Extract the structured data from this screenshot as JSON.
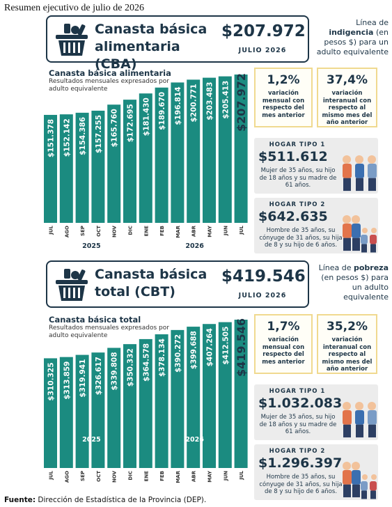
{
  "page_title": "Resumen ejecutivo de julio de 2026",
  "sections": [
    {
      "header": {
        "title": "Canasta básica alimentaria (CBA)",
        "amount": "$207.972",
        "period": "JULIO 2026",
        "note_before": "Línea de",
        "note_bold": "indigencia",
        "note_after": "(en pesos $) para un adulto equivalente"
      },
      "stats": [
        {
          "value": "1,2%",
          "label": "variación mensual con respecto del mes anterior"
        },
        {
          "value": "37,4%",
          "label": "variación interanual con respecto al mismo mes del año anterior"
        }
      ],
      "households": [
        {
          "title": "HOGAR TIPO 1",
          "amount": "$511.612",
          "description": "Mujer de 35 años, su hijo de 18 años y su madre de 61 años."
        },
        {
          "title": "HOGAR TIPO 2",
          "amount": "$642.635",
          "description": "Hombre de 35 años, su cónyuge de 31 años, su hija de 8 y su hijo de 6 años."
        }
      ]
    },
    {
      "header": {
        "title": "Canasta básica total (CBT)",
        "amount": "$419.546",
        "period": "JULIO 2026",
        "note_before": "Línea de",
        "note_bold": "pobreza",
        "note_after": "(en pesos $) para un adulto equivalente"
      },
      "stats": [
        {
          "value": "1,7%",
          "label": "variación mensual con respecto del mes anterior"
        },
        {
          "value": "35,2%",
          "label": "variación interanual con respecto al mismo mes del año anterior"
        }
      ],
      "households": [
        {
          "title": "HOGAR TIPO 1",
          "amount": "$1.032.083",
          "description": "Mujer de 35 años, su hijo de 18 años y su madre de 61 años."
        },
        {
          "title": "HOGAR TIPO 2",
          "amount": "$1.296.397",
          "description": "Hombre de 35 años, su cónyuge de 31 años, su hija de 8 y su hijo de 6 años."
        }
      ]
    }
  ],
  "chart_data": [
    {
      "type": "bar",
      "title": "Canasta básica alimentaria",
      "subtitle": "Resultados mensuales expresados por adulto equivalente",
      "categories": [
        "JUL",
        "AGO",
        "SEP",
        "OCT",
        "NOV",
        "DIC",
        "ENE",
        "FEB",
        "MAR",
        "ABR",
        "MAY",
        "JUN",
        "JUL"
      ],
      "year_labels": [
        "2025",
        "2026"
      ],
      "values": [
        151378,
        152142,
        154386,
        157255,
        165760,
        172695,
        181430,
        189670,
        196814,
        200771,
        203483,
        205413,
        207972
      ],
      "value_labels": [
        "$151.378",
        "$152.142",
        "$154.386",
        "$157.255",
        "$165.760",
        "$172.695",
        "$181.430",
        "$189.670",
        "$196.814",
        "$200.771",
        "$203.483",
        "$205.413",
        "$207.972"
      ],
      "color": "#1b8b80"
    },
    {
      "type": "bar",
      "title": "Canasta básica total",
      "subtitle": "Resultados mensuales expresados por adulto equivalente",
      "categories": [
        "JUL",
        "AGO",
        "SEP",
        "OCT",
        "NOV",
        "DIC",
        "ENE",
        "FEB",
        "MAR",
        "ABR",
        "MAY",
        "JUN",
        "JUL"
      ],
      "year_labels": [
        "2025",
        "2026"
      ],
      "values": [
        310325,
        313859,
        319941,
        326617,
        339808,
        350332,
        364578,
        378134,
        390272,
        399688,
        407264,
        412505,
        419546
      ],
      "value_labels": [
        "$310.325",
        "$313.859",
        "$319.941",
        "$326.617",
        "$339.808",
        "$350.332",
        "$364.578",
        "$378.134",
        "$390.272",
        "$399.688",
        "$407.264",
        "$412.505",
        "$419.546"
      ],
      "color": "#1b8b80"
    }
  ],
  "footer": {
    "label": "Fuente:",
    "text": "Dirección de Estadística de la Provincia (DEP)."
  }
}
